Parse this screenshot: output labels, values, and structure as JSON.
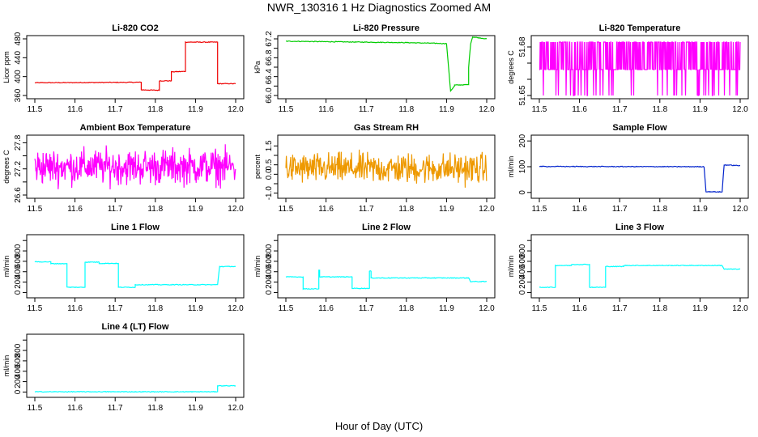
{
  "page": {
    "title": "NWR_130316  1 Hz Diagnostics Zoomed AM",
    "xlabel": "Hour of Day (UTC)"
  },
  "chart_data": [
    {
      "type": "line",
      "title": "Li-820 CO2",
      "xlabel": "",
      "ylabel": "Licor ppm",
      "color": "#ee0000",
      "xlim": [
        11.5,
        12.0
      ],
      "ylim": [
        360,
        480
      ],
      "xticks": [
        11.5,
        11.6,
        11.7,
        11.8,
        11.9,
        12.0
      ],
      "xtick_labels": [
        "11.5",
        "11.6",
        "11.7",
        "11.8",
        "11.9",
        "12.0"
      ],
      "yticks": [
        360,
        400,
        440,
        480
      ],
      "ytick_labels": [
        "360",
        "400",
        "440",
        "480"
      ],
      "series": [
        {
          "x": [
            11.5,
            11.765,
            11.765,
            11.81,
            11.81,
            11.84,
            11.84,
            11.875,
            11.875,
            11.955,
            11.955,
            12.0
          ],
          "y": [
            387,
            388,
            372,
            371,
            391,
            391,
            410,
            411,
            473,
            473,
            385,
            385
          ]
        }
      ]
    },
    {
      "type": "line",
      "title": "Li-820 Pressure",
      "xlabel": "",
      "ylabel": "kPa",
      "color": "#00cc00",
      "xlim": [
        11.5,
        12.0
      ],
      "ylim": [
        66.0,
        67.2
      ],
      "xticks": [
        11.5,
        11.6,
        11.7,
        11.8,
        11.9,
        12.0
      ],
      "xtick_labels": [
        "11.5",
        "11.6",
        "11.7",
        "11.8",
        "11.9",
        "12.0"
      ],
      "yticks": [
        66.0,
        66.2,
        66.4,
        66.6,
        66.8,
        67.0,
        67.2
      ],
      "ytick_labels": [
        "66.0",
        "",
        "66.4",
        "",
        "66.8",
        "",
        "67.2"
      ],
      "series": [
        {
          "x": [
            11.5,
            11.6,
            11.7,
            11.8,
            11.85,
            11.9,
            11.905,
            11.91,
            11.92,
            11.92,
            11.955,
            11.955,
            11.96,
            11.965,
            12.0
          ],
          "y": [
            67.15,
            67.14,
            67.13,
            67.12,
            67.11,
            67.1,
            66.6,
            66.1,
            66.2,
            66.22,
            66.23,
            66.6,
            67.1,
            67.24,
            67.2
          ]
        }
      ]
    },
    {
      "type": "line",
      "title": "Li-820 Temperature",
      "xlabel": "",
      "ylabel": "degrees C",
      "color": "#ff00ff",
      "xlim": [
        11.5,
        12.0
      ],
      "ylim": [
        51.65,
        51.685
      ],
      "xticks": [
        11.5,
        11.6,
        11.7,
        11.8,
        11.9,
        12.0
      ],
      "xtick_labels": [
        "11.5",
        "11.6",
        "11.7",
        "11.8",
        "11.9",
        "12.0"
      ],
      "yticks": [
        51.65,
        51.66,
        51.67,
        51.68
      ],
      "ytick_labels": [
        "51.65",
        "",
        "",
        "51.68"
      ],
      "series": [
        {
          "levels": [
            51.65,
            51.666,
            51.683
          ],
          "base": 51.666
        }
      ]
    },
    {
      "type": "line",
      "title": "Ambient Box Temperature",
      "xlabel": "",
      "ylabel": "degrees C",
      "color": "#ff00ff",
      "xlim": [
        11.5,
        12.0
      ],
      "ylim": [
        26.6,
        27.9
      ],
      "xticks": [
        11.5,
        11.6,
        11.7,
        11.8,
        11.9,
        12.0
      ],
      "xtick_labels": [
        "11.5",
        "11.6",
        "11.7",
        "11.8",
        "11.9",
        "12.0"
      ],
      "yticks": [
        26.6,
        26.9,
        27.2,
        27.5,
        27.8
      ],
      "ytick_labels": [
        "26.6",
        "",
        "27.2",
        "",
        "27.8"
      ],
      "series": [
        {
          "mean": 27.25,
          "spread": 0.6
        }
      ]
    },
    {
      "type": "line",
      "title": "Gas Stream RH",
      "xlabel": "",
      "ylabel": "percent",
      "color": "#ee9900",
      "xlim": [
        11.5,
        12.0
      ],
      "ylim": [
        -1.1,
        1.9
      ],
      "xticks": [
        11.5,
        11.6,
        11.7,
        11.8,
        11.9,
        12.0
      ],
      "xtick_labels": [
        "11.5",
        "11.6",
        "11.7",
        "11.8",
        "11.9",
        "12.0"
      ],
      "yticks": [
        -1.0,
        -0.5,
        0.0,
        0.5,
        1.0,
        1.5
      ],
      "ytick_labels": [
        "-1.0",
        "",
        "0.0",
        "0.5",
        "",
        "1.5"
      ],
      "series": [
        {
          "mean": 0.3,
          "spread": 1.2
        }
      ]
    },
    {
      "type": "line",
      "title": "Sample Flow",
      "xlabel": "",
      "ylabel": "ml/min",
      "color": "#0022cc",
      "xlim": [
        11.5,
        12.0
      ],
      "ylim": [
        -10,
        210
      ],
      "xticks": [
        11.5,
        11.6,
        11.7,
        11.8,
        11.9,
        12.0
      ],
      "xtick_labels": [
        "11.5",
        "11.6",
        "11.7",
        "11.8",
        "11.9",
        "12.0"
      ],
      "yticks": [
        0,
        100,
        200
      ],
      "ytick_labels": [
        "0",
        "100",
        "200"
      ],
      "series": [
        {
          "x": [
            11.5,
            11.91,
            11.915,
            11.955,
            11.96,
            12.0
          ],
          "y": [
            101,
            100,
            3,
            2,
            107,
            104
          ]
        }
      ]
    },
    {
      "type": "line",
      "title": "Line 1 Flow",
      "xlabel": "",
      "ylabel": "ml/min",
      "color": "#00ffff",
      "xlim": [
        11.5,
        12.0
      ],
      "ylim": [
        -40,
        1050
      ],
      "xticks": [
        11.5,
        11.6,
        11.7,
        11.8,
        11.9,
        12.0
      ],
      "xtick_labels": [
        "11.5",
        "11.6",
        "11.7",
        "11.8",
        "11.9",
        "12.0"
      ],
      "yticks": [
        0,
        200,
        400,
        600,
        800,
        1000
      ],
      "ytick_labels": [
        "0",
        "200",
        "400",
        "600",
        "800",
        ""
      ],
      "series": [
        {
          "x": [
            11.5,
            11.54,
            11.54,
            11.58,
            11.58,
            11.625,
            11.625,
            11.66,
            11.66,
            11.708,
            11.708,
            11.75,
            11.75,
            11.955,
            11.96,
            12.0
          ],
          "y": [
            590,
            590,
            555,
            555,
            100,
            100,
            585,
            585,
            560,
            560,
            100,
            100,
            150,
            150,
            500,
            500
          ]
        }
      ]
    },
    {
      "type": "line",
      "title": "Line 2 Flow",
      "xlabel": "",
      "ylabel": "ml/min",
      "color": "#00ffff",
      "xlim": [
        11.5,
        12.0
      ],
      "ylim": [
        -40,
        1050
      ],
      "xticks": [
        11.5,
        11.6,
        11.7,
        11.8,
        11.9,
        12.0
      ],
      "xtick_labels": [
        "11.5",
        "11.6",
        "11.7",
        "11.8",
        "11.9",
        "12.0"
      ],
      "yticks": [
        0,
        200,
        400,
        600,
        800,
        1000
      ],
      "ytick_labels": [
        "0",
        "200",
        "400",
        "600",
        "800",
        ""
      ],
      "series": [
        {
          "x": [
            11.5,
            11.543,
            11.543,
            11.582,
            11.582,
            11.584,
            11.584,
            11.665,
            11.665,
            11.708,
            11.708,
            11.712,
            11.712,
            11.955,
            11.96,
            12.0
          ],
          "y": [
            300,
            300,
            70,
            70,
            430,
            430,
            300,
            300,
            80,
            80,
            410,
            410,
            280,
            280,
            210,
            210
          ]
        }
      ]
    },
    {
      "type": "line",
      "title": "Line 3 Flow",
      "xlabel": "",
      "ylabel": "ml/min",
      "color": "#00ffff",
      "xlim": [
        11.5,
        12.0
      ],
      "ylim": [
        -40,
        1050
      ],
      "xticks": [
        11.5,
        11.6,
        11.7,
        11.8,
        11.9,
        12.0
      ],
      "xtick_labels": [
        "11.5",
        "11.6",
        "11.7",
        "11.8",
        "11.9",
        "12.0"
      ],
      "yticks": [
        0,
        200,
        400,
        600,
        800,
        1000
      ],
      "ytick_labels": [
        "0",
        "200",
        "400",
        "600",
        "800",
        ""
      ],
      "series": [
        {
          "x": [
            11.5,
            11.54,
            11.54,
            11.58,
            11.58,
            11.625,
            11.625,
            11.665,
            11.665,
            11.71,
            11.71,
            11.955,
            11.96,
            12.0
          ],
          "y": [
            100,
            100,
            520,
            520,
            540,
            540,
            100,
            100,
            500,
            500,
            520,
            520,
            450,
            450
          ]
        }
      ]
    },
    {
      "type": "line",
      "title": "Line 4 (LT) Flow",
      "xlabel": "",
      "ylabel": "ml/min",
      "color": "#00ffff",
      "xlim": [
        11.5,
        12.0
      ],
      "ylim": [
        -40,
        1050
      ],
      "xticks": [
        11.5,
        11.6,
        11.7,
        11.8,
        11.9,
        12.0
      ],
      "xtick_labels": [
        "11.5",
        "11.6",
        "11.7",
        "11.8",
        "11.9",
        "12.0"
      ],
      "yticks": [
        0,
        200,
        400,
        600,
        800,
        1000
      ],
      "ytick_labels": [
        "0",
        "200",
        "400",
        "600",
        "800",
        ""
      ],
      "series": [
        {
          "x": [
            11.5,
            11.955,
            11.955,
            12.0
          ],
          "y": [
            5,
            5,
            120,
            120
          ]
        }
      ]
    }
  ]
}
